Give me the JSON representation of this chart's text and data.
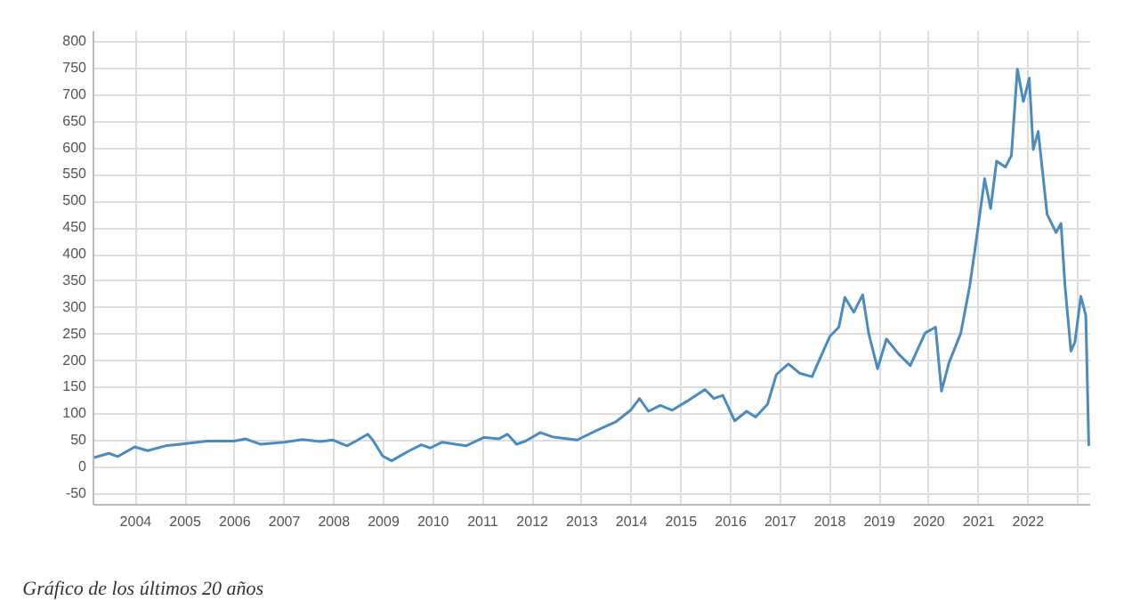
{
  "chart_data": {
    "type": "line",
    "annotations": [
      "Gráfico de los últimos 20 años"
    ],
    "xlim": [
      2003.15,
      2023.25
    ],
    "ylim": [
      -70,
      820
    ],
    "xticks": [
      2004,
      2005,
      2006,
      2007,
      2008,
      2009,
      2010,
      2011,
      2012,
      2013,
      2014,
      2015,
      2016,
      2017,
      2018,
      2019,
      2020,
      2021,
      2022,
      {
        "value": 2023,
        "label": null
      }
    ],
    "yticks": [
      -50,
      0,
      50,
      100,
      150,
      200,
      250,
      300,
      350,
      400,
      450,
      500,
      550,
      600,
      650,
      700,
      750,
      800
    ],
    "grid": true,
    "marker": "none",
    "line_style": "solid",
    "series": [
      {
        "color": "#4a8bc0",
        "x": [
          2003.18,
          2003.48,
          2003.66,
          2004,
          2004.26,
          2004.62,
          2005,
          2005.46,
          2006,
          2006.24,
          2006.54,
          2007.02,
          2007.38,
          2007.74,
          2008,
          2008.28,
          2008.46,
          2008.7,
          2008.8,
          2009,
          2009.18,
          2009.54,
          2009.78,
          2009.96,
          2010.2,
          2010.68,
          2011.04,
          2011.34,
          2011.52,
          2011.7,
          2011.88,
          2012.18,
          2012.42,
          2012.92,
          2013.34,
          2013.7,
          2014,
          2014.18,
          2014.36,
          2014.6,
          2014.84,
          2015.14,
          2015.5,
          2015.68,
          2015.86,
          2016.1,
          2016.34,
          2016.52,
          2016.76,
          2016.94,
          2017.18,
          2017.42,
          2017.66,
          2017.78,
          2018.02,
          2018.2,
          2018.32,
          2018.5,
          2018.68,
          2018.8,
          2018.98,
          2019.16,
          2019.4,
          2019.64,
          2019.94,
          2020.15,
          2020.27,
          2020.42,
          2020.66,
          2020.84,
          2020.96,
          2021.14,
          2021.26,
          2021.38,
          2021.56,
          2021.68,
          2021.8,
          2021.92,
          2022.04,
          2022.12,
          2022.22,
          2022.4,
          2022.58,
          2022.68,
          2022.76,
          2022.88,
          2022.96,
          2023.08,
          2023.18,
          2023.24
        ],
        "values": [
          17,
          25,
          19,
          37,
          30,
          39,
          43,
          48,
          48,
          52,
          42,
          46,
          51,
          47,
          50,
          39,
          48,
          61,
          50,
          20,
          11,
          30,
          41,
          35,
          46,
          39,
          55,
          52,
          61,
          42,
          48,
          64,
          56,
          50,
          69,
          84,
          106,
          128,
          104,
          115,
          106,
          123,
          145,
          128,
          134,
          86,
          104,
          93,
          117,
          173,
          193,
          175,
          169,
          195,
          245,
          262,
          318,
          290,
          323,
          251,
          184,
          240,
          212,
          190,
          251,
          262,
          142,
          195,
          251,
          340,
          418,
          541,
          485,
          574,
          563,
          585,
          747,
          686,
          730,
          596,
          630,
          474,
          440,
          457,
          340,
          217,
          234,
          320,
          284,
          39
        ]
      }
    ]
  }
}
